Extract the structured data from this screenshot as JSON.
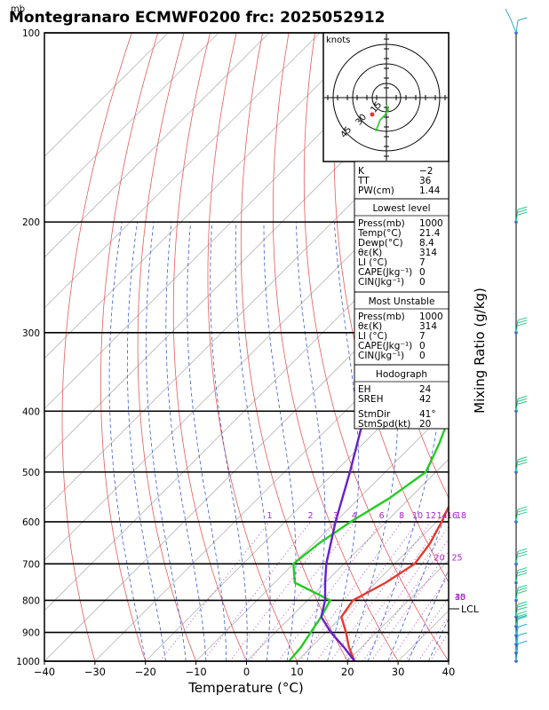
{
  "title": "Montegranaro ECMWF0200 frc: 2025052912",
  "pressure_unit": "mb",
  "xlabel": "Temperature (°C)",
  "ylabel": "Mixing Ratio (g/kg)",
  "hodograph": {
    "unit": "knots",
    "ring_labels": [
      "15",
      "30",
      "45"
    ]
  },
  "lcl_label": "LCL",
  "mixing_ratio_labels": [
    "1",
    "2",
    "3",
    "4",
    "6",
    "8",
    "10",
    "12",
    "14",
    "16",
    "18",
    "20",
    "25",
    "30",
    "35",
    "40"
  ],
  "indices": {
    "top": [
      {
        "label": "K",
        "value": "−2"
      },
      {
        "label": "TT",
        "value": "36"
      },
      {
        "label": "PW(cm)",
        "value": "1.44"
      }
    ],
    "lowest_level": {
      "heading": "Lowest level",
      "rows": [
        {
          "label": "Press(mb)",
          "value": "1000"
        },
        {
          "label": "Temp(°C)",
          "value": "21.4"
        },
        {
          "label": "Dewp(°C)",
          "value": "8.4"
        },
        {
          "label": "θε(K)",
          "value": "314"
        },
        {
          "label": "LI (°C)",
          "value": "7"
        },
        {
          "label": "CAPE(Jkg⁻¹)",
          "value": "0"
        },
        {
          "label": "CIN(Jkg⁻¹)",
          "value": "0"
        }
      ]
    },
    "most_unstable": {
      "heading": "Most Unstable",
      "rows": [
        {
          "label": "Press(mb)",
          "value": "1000"
        },
        {
          "label": "θε(K)",
          "value": "314"
        },
        {
          "label": "LI (°C)",
          "value": "7"
        },
        {
          "label": "CAPE(Jkg⁻¹)",
          "value": "0"
        },
        {
          "label": "CIN(Jkg⁻¹)",
          "value": "0"
        }
      ]
    },
    "hodograph_box": {
      "heading": "Hodograph",
      "rows": [
        {
          "label": "EH",
          "value": "24"
        },
        {
          "label": "SREH",
          "value": "42"
        },
        {
          "label": "StmDir",
          "value": "41°"
        },
        {
          "label": "StmSpd(kt)",
          "value": "20"
        }
      ]
    }
  },
  "chart_data": {
    "type": "line",
    "chart_kind": "skew-T log-p diagram",
    "x_axis": {
      "label": "Temperature (°C)",
      "range": [
        -40,
        40
      ],
      "ticks": [
        -40,
        -30,
        -20,
        -10,
        0,
        10,
        20,
        30,
        40
      ]
    },
    "y_axis": {
      "label": "mb",
      "scale": "log",
      "range": [
        1000,
        100
      ],
      "ticks": [
        1000,
        900,
        800,
        700,
        600,
        500,
        400,
        300,
        200,
        100
      ]
    },
    "series": [
      {
        "color": "#e8382e",
        "points": [
          [
            1000,
            21.4
          ],
          [
            950,
            17.5
          ],
          [
            900,
            14
          ],
          [
            850,
            10
          ],
          [
            800,
            9
          ],
          [
            750,
            12
          ],
          [
            700,
            14
          ],
          [
            650,
            13
          ],
          [
            600,
            11
          ],
          [
            550,
            8.5
          ],
          [
            500,
            5
          ],
          [
            400,
            -5
          ],
          [
            300,
            -19
          ],
          [
            250,
            -30
          ],
          [
            200,
            -21
          ],
          [
            150,
            -10
          ],
          [
            100,
            2
          ]
        ]
      },
      {
        "color": "#22cc22",
        "points": [
          [
            1000,
            8.4
          ],
          [
            950,
            8
          ],
          [
            900,
            7
          ],
          [
            850,
            6
          ],
          [
            800,
            4.5
          ],
          [
            750,
            -6
          ],
          [
            700,
            -10
          ],
          [
            650,
            -9
          ],
          [
            600,
            -7
          ],
          [
            550,
            -4
          ],
          [
            500,
            -2
          ],
          [
            450,
            -5
          ],
          [
            400,
            -9
          ],
          [
            300,
            -17
          ],
          [
            250,
            -21
          ],
          [
            200,
            -23
          ],
          [
            150,
            -26
          ],
          [
            100,
            -28
          ]
        ]
      },
      {
        "color": "#6620cc",
        "points": [
          [
            1000,
            21.4
          ],
          [
            950,
            16.5
          ],
          [
            900,
            11
          ],
          [
            850,
            6
          ],
          [
            800,
            3.5
          ],
          [
            750,
            0
          ],
          [
            700,
            -3.5
          ],
          [
            600,
            -10
          ],
          [
            500,
            -17
          ],
          [
            400,
            -26
          ],
          [
            300,
            -40
          ],
          [
            250,
            -49
          ],
          [
            200,
            -58
          ],
          [
            150,
            -70
          ],
          [
            100,
            -86
          ]
        ]
      }
    ]
  }
}
